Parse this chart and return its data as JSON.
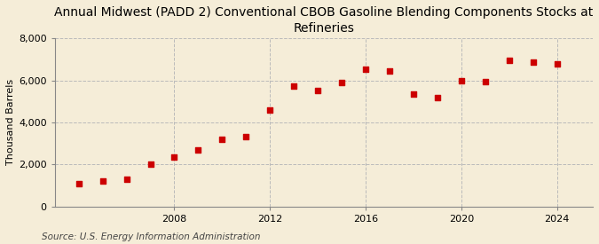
{
  "title": "Annual Midwest (PADD 2) Conventional CBOB Gasoline Blending Components Stocks at\nRefineries",
  "ylabel": "Thousand Barrels",
  "source": "Source: U.S. Energy Information Administration",
  "background_color": "#f5edd8",
  "plot_background_color": "#f5edd8",
  "marker_color": "#cc0000",
  "years": [
    2004,
    2005,
    2006,
    2007,
    2008,
    2009,
    2010,
    2011,
    2012,
    2013,
    2014,
    2015,
    2016,
    2017,
    2018,
    2019,
    2020,
    2021,
    2022,
    2023,
    2024
  ],
  "values": [
    1100,
    1200,
    1300,
    2000,
    2350,
    2700,
    3200,
    3300,
    4600,
    5750,
    5500,
    5900,
    6550,
    6450,
    5350,
    5200,
    6000,
    5950,
    6950,
    6850,
    6800
  ],
  "ylim": [
    0,
    8000
  ],
  "yticks": [
    0,
    2000,
    4000,
    6000,
    8000
  ],
  "xticks": [
    2008,
    2012,
    2016,
    2020,
    2024
  ],
  "xlim_left": 2003,
  "xlim_right": 2025.5,
  "grid_color": "#bbbbbb",
  "title_fontsize": 10,
  "axis_fontsize": 8,
  "tick_fontsize": 8,
  "source_fontsize": 7.5
}
